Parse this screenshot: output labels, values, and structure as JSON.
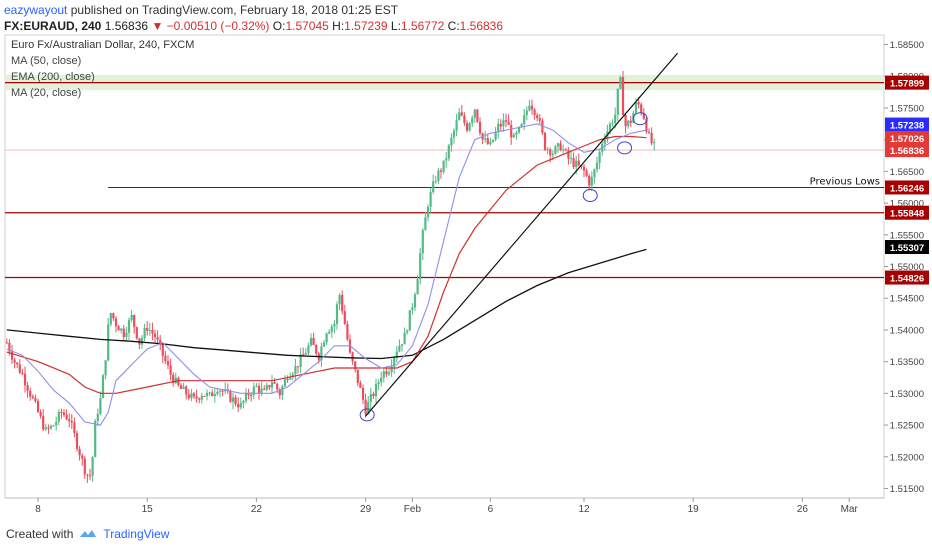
{
  "header": {
    "author": "eazywayout",
    "published": "published on TradingView.com, February 18, 2018 01:25 EST",
    "symbol": "FX:EURAUD, 240",
    "last": "1.56836",
    "change": "−0.00510 (−0.32%)",
    "o_label": "O:",
    "o": "1.57045",
    "h_label": "H:",
    "h": "1.57239",
    "l_label": "L:",
    "l": "1.56772",
    "c_label": "C:",
    "c": "1.56836"
  },
  "legend": {
    "title": "Euro Fx/Australian Dollar, 240, FXCM",
    "items": [
      "MA (50, close)",
      "EMA (200, close)",
      "MA (20, close)"
    ]
  },
  "footer": {
    "created": "Created with",
    "brand": "TradingView"
  },
  "colors": {
    "up": "#53b987",
    "down": "#eb4d5c",
    "ma50": "#d32f2f",
    "ema200": "#111111",
    "ma20": "#8f8fe8",
    "level": "#a80000",
    "zone": "#dcefd4",
    "last": "#e53935",
    "blue_tag": "#2b2bff",
    "black_tag": "#000000"
  },
  "chart_data": {
    "type": "candlestick",
    "symbol": "FX:EURAUD",
    "timeframe": "240",
    "ylim": [
      1.5135,
      1.5865
    ],
    "y_ticks": [
      "1.58500",
      "1.58000",
      "1.57500",
      "1.57000",
      "1.56500",
      "1.56000",
      "1.55500",
      "1.55000",
      "1.54500",
      "1.54000",
      "1.53500",
      "1.53000",
      "1.52500",
      "1.52000",
      "1.51500"
    ],
    "x_ticks": [
      "8",
      "15",
      "22",
      "29",
      "Feb",
      "6",
      "12",
      "19",
      "26",
      "Mar"
    ],
    "price_tags": [
      {
        "value": "1.57899",
        "style": "level"
      },
      {
        "value": "1.57238",
        "style": "blue"
      },
      {
        "value": "1.57026",
        "style": "red"
      },
      {
        "value": "1.56836",
        "style": "red"
      },
      {
        "value": "1.56246",
        "style": "level"
      },
      {
        "value": "1.55848",
        "style": "level"
      },
      {
        "value": "1.55307",
        "style": "black"
      },
      {
        "value": "1.54826",
        "style": "level"
      }
    ],
    "horizontal_levels": [
      1.57899,
      1.56246,
      1.55848,
      1.54826
    ],
    "resistance_zone": [
      1.5778,
      1.5802
    ],
    "annotations": [
      {
        "text": "Previous Lows",
        "value": 1.56246
      }
    ],
    "trendline": {
      "from": [
        29,
        1.5264
      ],
      "to": [
        34.1,
        1.5782
      ]
    },
    "ellipses": [
      [
        29.1,
        1.5266
      ],
      [
        43.4,
        1.5612
      ],
      [
        45.6,
        1.5687
      ],
      [
        46.6,
        1.5733
      ]
    ],
    "candles_anchor": [
      [
        6.0,
        1.538
      ],
      [
        6.5,
        1.535
      ],
      [
        7.0,
        1.533
      ],
      [
        7.5,
        1.53
      ],
      [
        8.0,
        1.527
      ],
      [
        8.5,
        1.524
      ],
      [
        9.0,
        1.525
      ],
      [
        9.5,
        1.527
      ],
      [
        10.0,
        1.526
      ],
      [
        10.5,
        1.522
      ],
      [
        11.0,
        1.518
      ],
      [
        11.3,
        1.5165
      ],
      [
        11.5,
        1.52
      ],
      [
        11.7,
        1.526
      ],
      [
        12.0,
        1.529
      ],
      [
        12.3,
        1.535
      ],
      [
        12.6,
        1.543
      ],
      [
        13.0,
        1.541
      ],
      [
        13.5,
        1.5395
      ],
      [
        14.0,
        1.542
      ],
      [
        14.5,
        1.538
      ],
      [
        15.0,
        1.5405
      ],
      [
        15.5,
        1.539
      ],
      [
        16.0,
        1.536
      ],
      [
        16.5,
        1.533
      ],
      [
        17.0,
        1.531
      ],
      [
        17.5,
        1.53
      ],
      [
        18.0,
        1.529
      ],
      [
        18.5,
        1.53
      ],
      [
        19.0,
        1.5295
      ],
      [
        19.5,
        1.531
      ],
      [
        20.0,
        1.53
      ],
      [
        20.5,
        1.529
      ],
      [
        21.0,
        1.528
      ],
      [
        21.5,
        1.53
      ],
      [
        22.0,
        1.531
      ],
      [
        22.5,
        1.53
      ],
      [
        23.0,
        1.532
      ],
      [
        23.5,
        1.53
      ],
      [
        24.0,
        1.533
      ],
      [
        24.5,
        1.534
      ],
      [
        25.0,
        1.536
      ],
      [
        25.5,
        1.538
      ],
      [
        26.0,
        1.536
      ],
      [
        26.5,
        1.54
      ],
      [
        27.0,
        1.541
      ],
      [
        27.3,
        1.546
      ],
      [
        27.6,
        1.542
      ],
      [
        28.0,
        1.536
      ],
      [
        28.5,
        1.532
      ],
      [
        29.0,
        1.5275
      ],
      [
        29.3,
        1.529
      ],
      [
        29.7,
        1.531
      ],
      [
        30.0,
        1.533
      ],
      [
        30.5,
        1.534
      ],
      [
        31.0,
        1.537
      ],
      [
        31.5,
        1.539
      ],
      [
        32.0,
        1.544
      ],
      [
        32.3,
        1.548
      ],
      [
        32.6,
        1.554
      ],
      [
        33.0,
        1.56
      ],
      [
        33.5,
        1.564
      ],
      [
        34.0,
        1.566
      ],
      [
        34.5,
        1.57
      ],
      [
        35.0,
        1.574
      ],
      [
        35.5,
        1.572
      ],
      [
        36.0,
        1.575
      ],
      [
        36.5,
        1.57
      ],
      [
        37.0,
        1.569
      ],
      [
        37.5,
        1.572
      ],
      [
        38.0,
        1.573
      ],
      [
        38.5,
        1.57
      ],
      [
        39.0,
        1.572
      ],
      [
        39.5,
        1.576
      ],
      [
        40.0,
        1.574
      ],
      [
        40.5,
        1.569
      ],
      [
        41.0,
        1.568
      ],
      [
        41.5,
        1.569
      ],
      [
        42.0,
        1.567
      ],
      [
        42.5,
        1.566
      ],
      [
        43.0,
        1.565
      ],
      [
        43.4,
        1.563
      ],
      [
        43.8,
        1.566
      ],
      [
        44.2,
        1.57
      ],
      [
        44.6,
        1.572
      ],
      [
        45.0,
        1.574
      ],
      [
        45.3,
        1.58
      ],
      [
        45.6,
        1.572
      ],
      [
        46.0,
        1.573
      ],
      [
        46.4,
        1.576
      ],
      [
        46.8,
        1.574
      ],
      [
        47.2,
        1.57
      ],
      [
        47.6,
        1.5684
      ]
    ],
    "ma20": [
      [
        6,
        1.537
      ],
      [
        7,
        1.536
      ],
      [
        8,
        1.5335
      ],
      [
        9,
        1.5305
      ],
      [
        10,
        1.5285
      ],
      [
        11,
        1.5255
      ],
      [
        12,
        1.525
      ],
      [
        12.5,
        1.527
      ],
      [
        13,
        1.532
      ],
      [
        14,
        1.5345
      ],
      [
        15,
        1.537
      ],
      [
        16,
        1.538
      ],
      [
        17,
        1.5355
      ],
      [
        18,
        1.533
      ],
      [
        19,
        1.531
      ],
      [
        20,
        1.5305
      ],
      [
        21,
        1.53
      ],
      [
        22,
        1.53
      ],
      [
        23,
        1.53
      ],
      [
        24,
        1.531
      ],
      [
        25,
        1.533
      ],
      [
        26,
        1.535
      ],
      [
        27,
        1.5375
      ],
      [
        28,
        1.5375
      ],
      [
        29,
        1.5355
      ],
      [
        30,
        1.534
      ],
      [
        31,
        1.5345
      ],
      [
        32,
        1.5375
      ],
      [
        33,
        1.544
      ],
      [
        34,
        1.554
      ],
      [
        35,
        1.564
      ],
      [
        36,
        1.57
      ],
      [
        37,
        1.571
      ],
      [
        38,
        1.5715
      ],
      [
        39,
        1.572
      ],
      [
        40,
        1.5725
      ],
      [
        41,
        1.5715
      ],
      [
        42,
        1.5695
      ],
      [
        43,
        1.568
      ],
      [
        44,
        1.5685
      ],
      [
        45,
        1.57
      ],
      [
        46,
        1.571
      ],
      [
        47,
        1.5715
      ]
    ],
    "ma50": [
      [
        6,
        1.5365
      ],
      [
        8,
        1.535
      ],
      [
        10,
        1.533
      ],
      [
        11,
        1.531
      ],
      [
        12,
        1.53
      ],
      [
        13,
        1.53
      ],
      [
        15,
        1.531
      ],
      [
        17,
        1.532
      ],
      [
        19,
        1.532
      ],
      [
        21,
        1.532
      ],
      [
        23,
        1.532
      ],
      [
        25,
        1.533
      ],
      [
        27,
        1.534
      ],
      [
        29,
        1.534
      ],
      [
        31,
        1.534
      ],
      [
        32,
        1.535
      ],
      [
        33,
        1.539
      ],
      [
        34,
        1.546
      ],
      [
        35,
        1.552
      ],
      [
        36,
        1.556
      ],
      [
        37,
        1.559
      ],
      [
        38,
        1.562
      ],
      [
        39,
        1.564
      ],
      [
        40,
        1.566
      ],
      [
        41,
        1.567
      ],
      [
        42,
        1.568
      ],
      [
        43,
        1.569
      ],
      [
        44,
        1.57
      ],
      [
        45,
        1.5705
      ],
      [
        46,
        1.5705
      ],
      [
        47,
        1.5703
      ]
    ],
    "ema200": [
      [
        6,
        1.54
      ],
      [
        8,
        1.5395
      ],
      [
        10,
        1.539
      ],
      [
        12,
        1.5385
      ],
      [
        14,
        1.5382
      ],
      [
        16,
        1.5378
      ],
      [
        18,
        1.5372
      ],
      [
        20,
        1.5368
      ],
      [
        22,
        1.5364
      ],
      [
        24,
        1.536
      ],
      [
        26,
        1.5358
      ],
      [
        28,
        1.5356
      ],
      [
        30,
        1.5355
      ],
      [
        32,
        1.536
      ],
      [
        34,
        1.5385
      ],
      [
        36,
        1.5415
      ],
      [
        38,
        1.5445
      ],
      [
        40,
        1.547
      ],
      [
        42,
        1.549
      ],
      [
        44,
        1.5505
      ],
      [
        46,
        1.552
      ],
      [
        47,
        1.5527
      ]
    ]
  }
}
